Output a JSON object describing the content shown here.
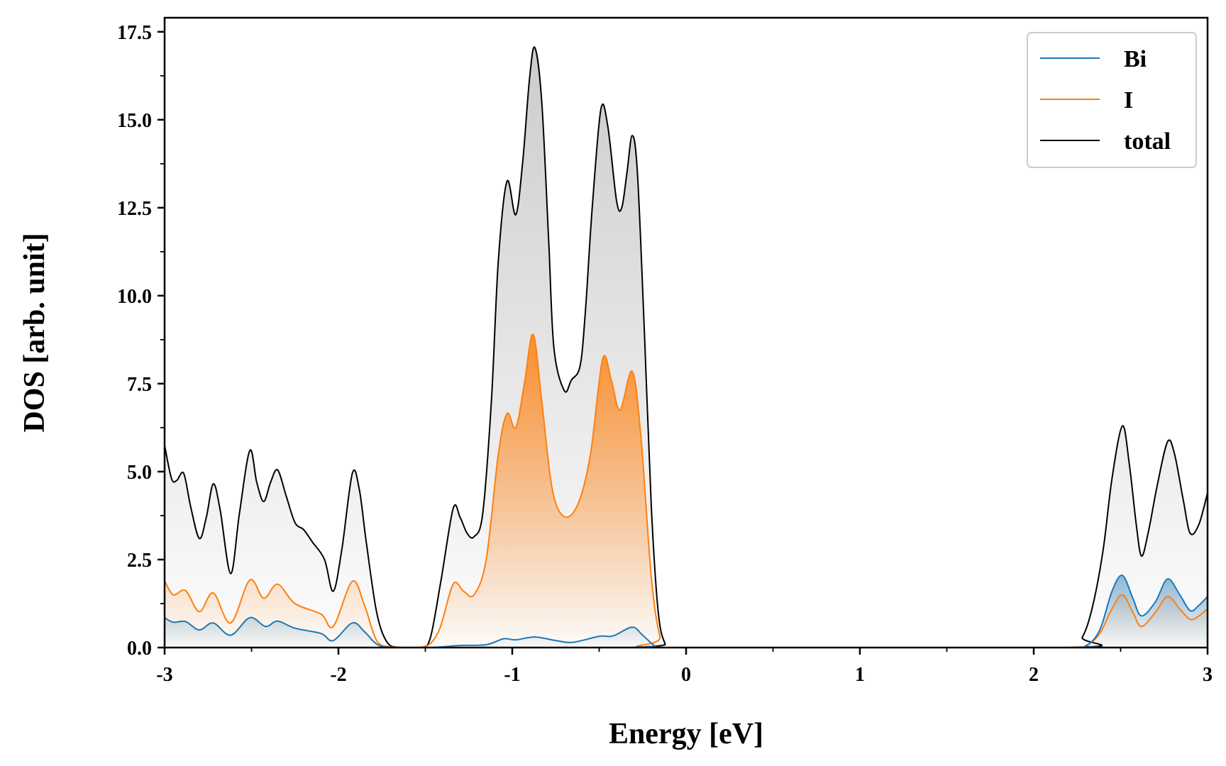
{
  "chart_data": {
    "type": "line",
    "title": "",
    "xlabel": "Energy [eV]",
    "ylabel": "DOS [arb. unit]",
    "xlim": [
      -3,
      3
    ],
    "ylim": [
      0,
      17.9
    ],
    "x_ticks": [
      -3,
      -2,
      -1,
      0,
      1,
      2,
      3
    ],
    "x_tick_labels": [
      "-3",
      "-2",
      "-1",
      "0",
      "1",
      "2",
      "3"
    ],
    "y_ticks": [
      0,
      2.5,
      5,
      7.5,
      10,
      12.5,
      15,
      17.5
    ],
    "y_tick_labels": [
      "0.0",
      "2.5",
      "5.0",
      "7.5",
      "10.0",
      "12.5",
      "15.0",
      "17.5"
    ],
    "grid": false,
    "legend_position": "top-right",
    "fill_under_curves": true,
    "series": [
      {
        "name": "Bi",
        "color": "#1f77b4",
        "points": [
          [
            -3.0,
            0.85
          ],
          [
            -2.95,
            0.72
          ],
          [
            -2.88,
            0.74
          ],
          [
            -2.8,
            0.5
          ],
          [
            -2.72,
            0.7
          ],
          [
            -2.62,
            0.35
          ],
          [
            -2.51,
            0.85
          ],
          [
            -2.42,
            0.6
          ],
          [
            -2.35,
            0.75
          ],
          [
            -2.25,
            0.55
          ],
          [
            -2.1,
            0.4
          ],
          [
            -2.03,
            0.2
          ],
          [
            -1.92,
            0.7
          ],
          [
            -1.85,
            0.45
          ],
          [
            -1.78,
            0.1
          ],
          [
            -1.7,
            0.0
          ],
          [
            -1.5,
            0.0
          ],
          [
            -1.4,
            0.02
          ],
          [
            -1.3,
            0.06
          ],
          [
            -1.15,
            0.08
          ],
          [
            -1.05,
            0.25
          ],
          [
            -0.98,
            0.22
          ],
          [
            -0.87,
            0.3
          ],
          [
            -0.75,
            0.2
          ],
          [
            -0.65,
            0.15
          ],
          [
            -0.5,
            0.32
          ],
          [
            -0.42,
            0.33
          ],
          [
            -0.31,
            0.58
          ],
          [
            -0.25,
            0.35
          ],
          [
            -0.18,
            0.05
          ],
          [
            -0.12,
            0.0
          ],
          [
            2.2,
            0.0
          ],
          [
            2.3,
            0.05
          ],
          [
            2.38,
            0.5
          ],
          [
            2.45,
            1.6
          ],
          [
            2.51,
            2.05
          ],
          [
            2.57,
            1.4
          ],
          [
            2.62,
            0.9
          ],
          [
            2.7,
            1.3
          ],
          [
            2.77,
            1.95
          ],
          [
            2.84,
            1.5
          ],
          [
            2.9,
            1.05
          ],
          [
            2.95,
            1.2
          ],
          [
            3.0,
            1.45
          ]
        ]
      },
      {
        "name": "I",
        "color": "#ff7f0e",
        "points": [
          [
            -3.0,
            1.9
          ],
          [
            -2.95,
            1.5
          ],
          [
            -2.88,
            1.62
          ],
          [
            -2.8,
            1.02
          ],
          [
            -2.72,
            1.55
          ],
          [
            -2.62,
            0.7
          ],
          [
            -2.51,
            1.92
          ],
          [
            -2.43,
            1.4
          ],
          [
            -2.35,
            1.8
          ],
          [
            -2.25,
            1.25
          ],
          [
            -2.1,
            0.95
          ],
          [
            -2.03,
            0.6
          ],
          [
            -1.92,
            1.88
          ],
          [
            -1.85,
            1.2
          ],
          [
            -1.78,
            0.2
          ],
          [
            -1.7,
            0.02
          ],
          [
            -1.6,
            0.0
          ],
          [
            -1.5,
            0.02
          ],
          [
            -1.42,
            0.5
          ],
          [
            -1.34,
            1.8
          ],
          [
            -1.28,
            1.6
          ],
          [
            -1.22,
            1.5
          ],
          [
            -1.15,
            2.5
          ],
          [
            -1.08,
            5.5
          ],
          [
            -1.03,
            6.65
          ],
          [
            -0.98,
            6.25
          ],
          [
            -0.93,
            7.5
          ],
          [
            -0.88,
            8.9
          ],
          [
            -0.83,
            7.0
          ],
          [
            -0.77,
            4.5
          ],
          [
            -0.7,
            3.72
          ],
          [
            -0.62,
            4.1
          ],
          [
            -0.55,
            5.5
          ],
          [
            -0.48,
            8.2
          ],
          [
            -0.43,
            7.6
          ],
          [
            -0.38,
            6.75
          ],
          [
            -0.31,
            7.85
          ],
          [
            -0.26,
            6.0
          ],
          [
            -0.2,
            2.0
          ],
          [
            -0.15,
            0.3
          ],
          [
            -0.1,
            0.0
          ],
          [
            2.2,
            0.0
          ],
          [
            2.3,
            0.05
          ],
          [
            2.38,
            0.4
          ],
          [
            2.45,
            1.1
          ],
          [
            2.51,
            1.5
          ],
          [
            2.57,
            1.0
          ],
          [
            2.62,
            0.6
          ],
          [
            2.7,
            1.0
          ],
          [
            2.77,
            1.45
          ],
          [
            2.84,
            1.1
          ],
          [
            2.9,
            0.8
          ],
          [
            2.95,
            0.9
          ],
          [
            3.0,
            1.1
          ]
        ]
      },
      {
        "name": "total",
        "color": "#000000",
        "points": [
          [
            -3.0,
            5.75
          ],
          [
            -2.96,
            4.8
          ],
          [
            -2.93,
            4.75
          ],
          [
            -2.89,
            4.95
          ],
          [
            -2.85,
            4.0
          ],
          [
            -2.8,
            3.1
          ],
          [
            -2.76,
            3.7
          ],
          [
            -2.72,
            4.65
          ],
          [
            -2.68,
            3.9
          ],
          [
            -2.62,
            2.1
          ],
          [
            -2.57,
            3.8
          ],
          [
            -2.51,
            5.6
          ],
          [
            -2.47,
            4.7
          ],
          [
            -2.43,
            4.15
          ],
          [
            -2.39,
            4.7
          ],
          [
            -2.35,
            5.05
          ],
          [
            -2.3,
            4.3
          ],
          [
            -2.25,
            3.55
          ],
          [
            -2.2,
            3.35
          ],
          [
            -2.15,
            3.0
          ],
          [
            -2.08,
            2.5
          ],
          [
            -2.03,
            1.6
          ],
          [
            -1.98,
            2.8
          ],
          [
            -1.92,
            4.95
          ],
          [
            -1.88,
            4.5
          ],
          [
            -1.84,
            3.0
          ],
          [
            -1.78,
            1.0
          ],
          [
            -1.72,
            0.15
          ],
          [
            -1.65,
            0.0
          ],
          [
            -1.52,
            0.0
          ],
          [
            -1.47,
            0.3
          ],
          [
            -1.41,
            1.9
          ],
          [
            -1.34,
            3.95
          ],
          [
            -1.3,
            3.7
          ],
          [
            -1.26,
            3.25
          ],
          [
            -1.22,
            3.15
          ],
          [
            -1.17,
            3.8
          ],
          [
            -1.12,
            7.0
          ],
          [
            -1.08,
            11.0
          ],
          [
            -1.03,
            13.25
          ],
          [
            -0.98,
            12.3
          ],
          [
            -0.94,
            13.8
          ],
          [
            -0.9,
            16.2
          ],
          [
            -0.87,
            17.05
          ],
          [
            -0.83,
            15.5
          ],
          [
            -0.79,
            11.5
          ],
          [
            -0.76,
            8.5
          ],
          [
            -0.7,
            7.3
          ],
          [
            -0.66,
            7.6
          ],
          [
            -0.61,
            8.0
          ],
          [
            -0.58,
            9.5
          ],
          [
            -0.54,
            12.5
          ],
          [
            -0.49,
            15.3
          ],
          [
            -0.45,
            14.8
          ],
          [
            -0.4,
            12.7
          ],
          [
            -0.37,
            12.5
          ],
          [
            -0.34,
            13.5
          ],
          [
            -0.31,
            14.55
          ],
          [
            -0.28,
            13.5
          ],
          [
            -0.24,
            9.0
          ],
          [
            -0.2,
            4.0
          ],
          [
            -0.16,
            1.0
          ],
          [
            -0.12,
            0.1
          ],
          [
            -0.08,
            0.0
          ],
          [
            2.2,
            0.0
          ],
          [
            2.28,
            0.3
          ],
          [
            2.34,
            1.2
          ],
          [
            2.4,
            2.8
          ],
          [
            2.45,
            4.8
          ],
          [
            2.51,
            6.3
          ],
          [
            2.55,
            5.2
          ],
          [
            2.59,
            3.5
          ],
          [
            2.62,
            2.6
          ],
          [
            2.66,
            3.3
          ],
          [
            2.71,
            4.6
          ],
          [
            2.77,
            5.85
          ],
          [
            2.81,
            5.5
          ],
          [
            2.86,
            4.2
          ],
          [
            2.9,
            3.25
          ],
          [
            2.95,
            3.5
          ],
          [
            3.0,
            4.4
          ]
        ]
      }
    ]
  }
}
